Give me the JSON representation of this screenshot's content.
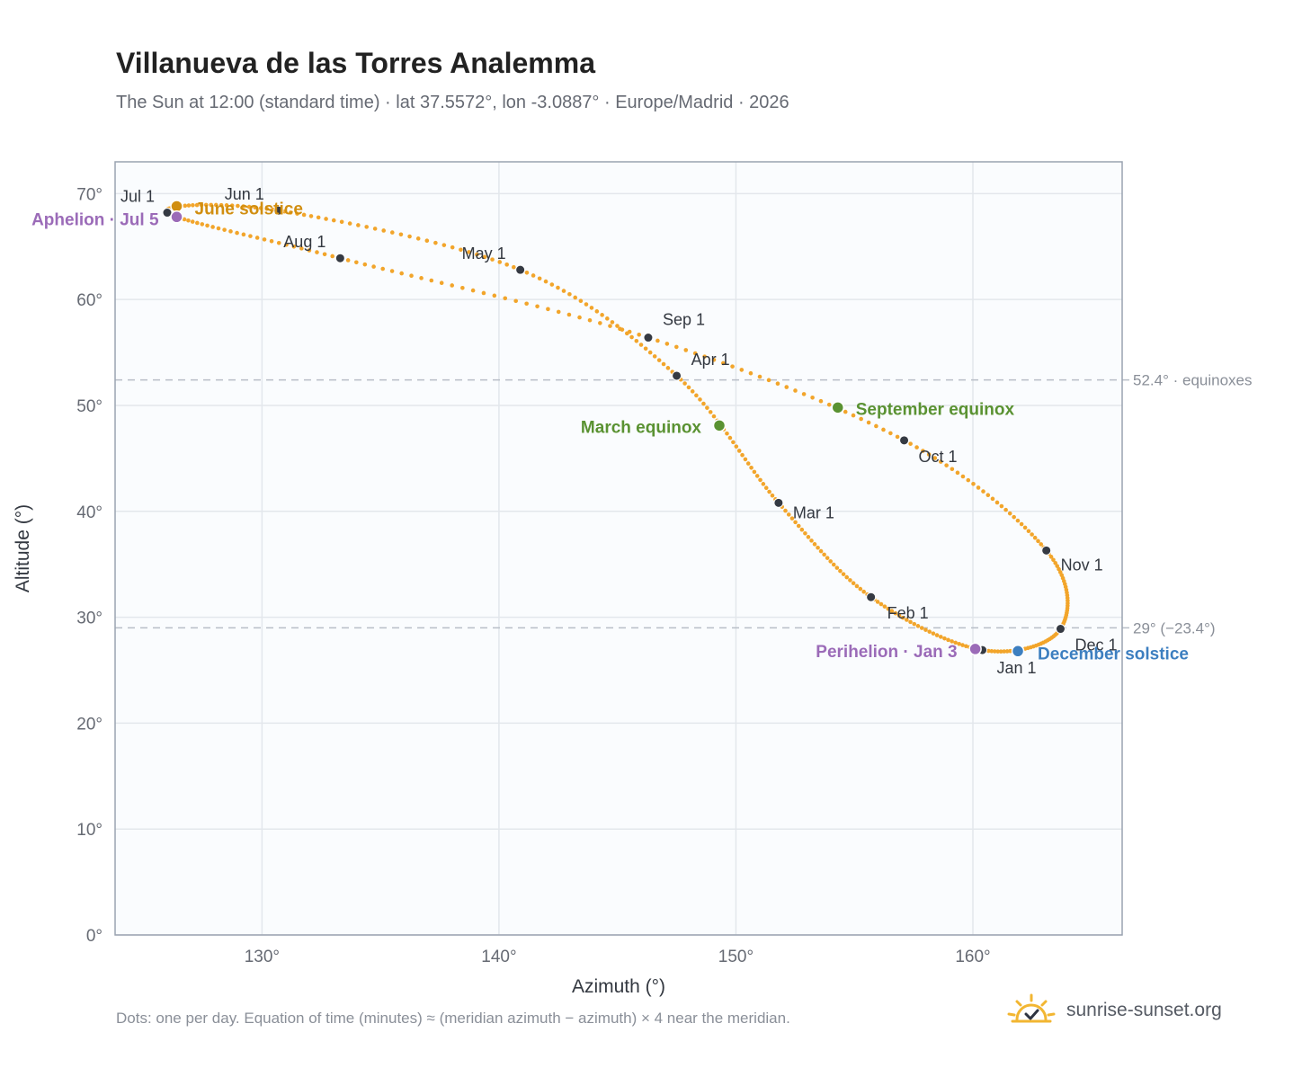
{
  "title": "Villanueva de las Torres Analemma",
  "subtitle": "The Sun at 12:00 (standard time) · lat 37.5572°, lon -3.0887° · Europe/Madrid · 2026",
  "footnote": "Dots: one per day. Equation of time (minutes) ≈ (meridian azimuth − azimuth) × 4 near the meridian.",
  "brand": {
    "name": "sunrise-sunset.org",
    "icon": "sun-check-icon"
  },
  "colors": {
    "curve": "#f2a52b",
    "month_marker": "#353a43",
    "solstice_june": "#d18e10",
    "solstice_december": "#3d7fc0",
    "equinox": "#5a9232",
    "apsis": "#9b6bb8",
    "reference_line": "#b8bec7",
    "grid": "#e3e7ec",
    "plot_bg": "#fafcfe",
    "plot_border": "#9aa3b0"
  },
  "chart_data": {
    "type": "scatter",
    "title": "Villanueva de las Torres Analemma",
    "xlabel": "Azimuth (°)",
    "ylabel": "Altitude (°)",
    "xlim": [
      123.8,
      166.3
    ],
    "ylim": [
      0,
      73
    ],
    "xticks": [
      130,
      140,
      150,
      160
    ],
    "yticks": [
      0,
      10,
      20,
      30,
      40,
      50,
      60,
      70
    ],
    "xtick_labels": [
      "130°",
      "140°",
      "150°",
      "160°"
    ],
    "ytick_labels": [
      "0°",
      "10°",
      "20°",
      "30°",
      "40°",
      "50°",
      "60°",
      "70°"
    ],
    "grid": true,
    "series_note": "One dot per day of 2026",
    "month_markers": [
      {
        "label": "Jan 1",
        "az": 160.4,
        "alt": 26.9
      },
      {
        "label": "Feb 1",
        "az": 155.7,
        "alt": 31.9
      },
      {
        "label": "Mar 1",
        "az": 151.8,
        "alt": 40.8
      },
      {
        "label": "Apr 1",
        "az": 147.5,
        "alt": 52.8
      },
      {
        "label": "May 1",
        "az": 140.9,
        "alt": 62.8
      },
      {
        "label": "Jun 1",
        "az": 130.7,
        "alt": 68.4
      },
      {
        "label": "Jul 1",
        "az": 126.0,
        "alt": 68.2
      },
      {
        "label": "Aug 1",
        "az": 133.3,
        "alt": 63.9
      },
      {
        "label": "Sep 1",
        "az": 146.3,
        "alt": 56.4
      },
      {
        "label": "Oct 1",
        "az": 157.1,
        "alt": 46.7
      },
      {
        "label": "Nov 1",
        "az": 163.1,
        "alt": 36.3
      },
      {
        "label": "Dec 1",
        "az": 163.7,
        "alt": 28.9
      }
    ],
    "events": [
      {
        "label": "June solstice",
        "az": 126.4,
        "alt": 68.8,
        "kind": "solstice_june"
      },
      {
        "label": "December solstice",
        "az": 161.9,
        "alt": 26.8,
        "kind": "solstice_december"
      },
      {
        "label": "March equinox",
        "az": 149.3,
        "alt": 48.1,
        "kind": "equinox"
      },
      {
        "label": "September equinox",
        "az": 154.3,
        "alt": 49.8,
        "kind": "equinox"
      },
      {
        "label": "Aphelion · Jul 5",
        "az": 126.4,
        "alt": 67.8,
        "kind": "apsis"
      },
      {
        "label": "Perihelion · Jan 3",
        "az": 160.1,
        "alt": 27.0,
        "kind": "apsis"
      }
    ],
    "reference_lines": [
      {
        "label": "52.4° · equinoxes",
        "alt": 52.4
      },
      {
        "label": "29° (−23.4°)",
        "alt": 29.0
      }
    ]
  }
}
